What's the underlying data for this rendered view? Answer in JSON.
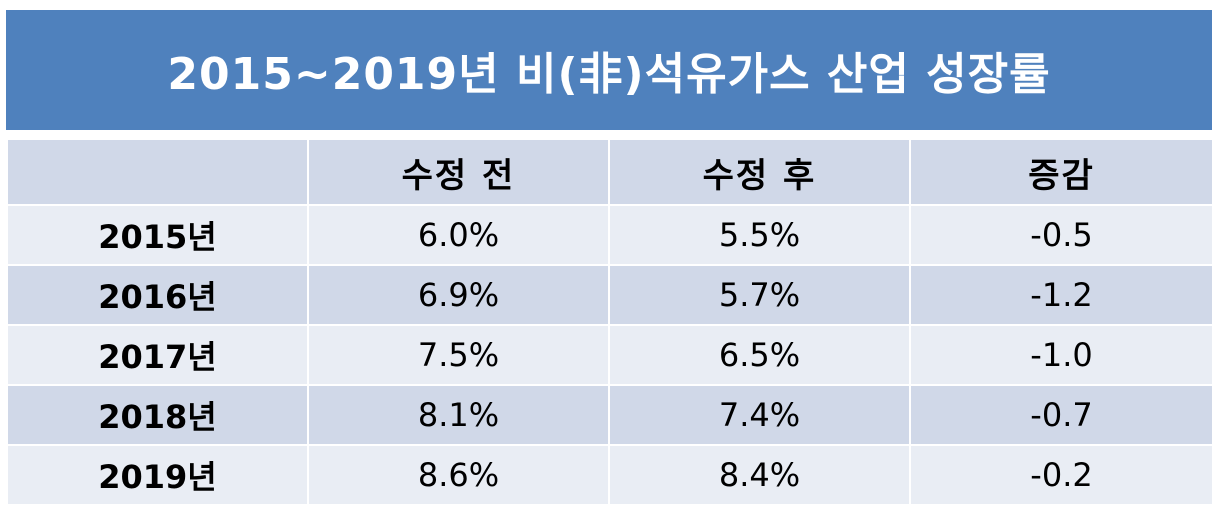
{
  "title": "2015~2019년 비(非)석유가스 산업 성장률",
  "table": {
    "headers": [
      "",
      "수정 전",
      "수정 후",
      "증감"
    ],
    "rows": [
      {
        "year": "2015년",
        "before": "6.0%",
        "after": "5.5%",
        "change": "-0.5"
      },
      {
        "year": "2016년",
        "before": "6.9%",
        "after": "5.7%",
        "change": "-1.2"
      },
      {
        "year": "2017년",
        "before": "7.5%",
        "after": "6.5%",
        "change": "-1.0"
      },
      {
        "year": "2018년",
        "before": "8.1%",
        "after": "7.4%",
        "change": "-0.7"
      },
      {
        "year": "2019년",
        "before": "8.6%",
        "after": "8.4%",
        "change": "-0.2"
      }
    ]
  },
  "colors": {
    "title_bg": "#4f81bd",
    "title_text": "#ffffff",
    "header_bg": "#d0d8e8",
    "row_light": "#e9edf4",
    "row_dark": "#d0d8e8"
  }
}
